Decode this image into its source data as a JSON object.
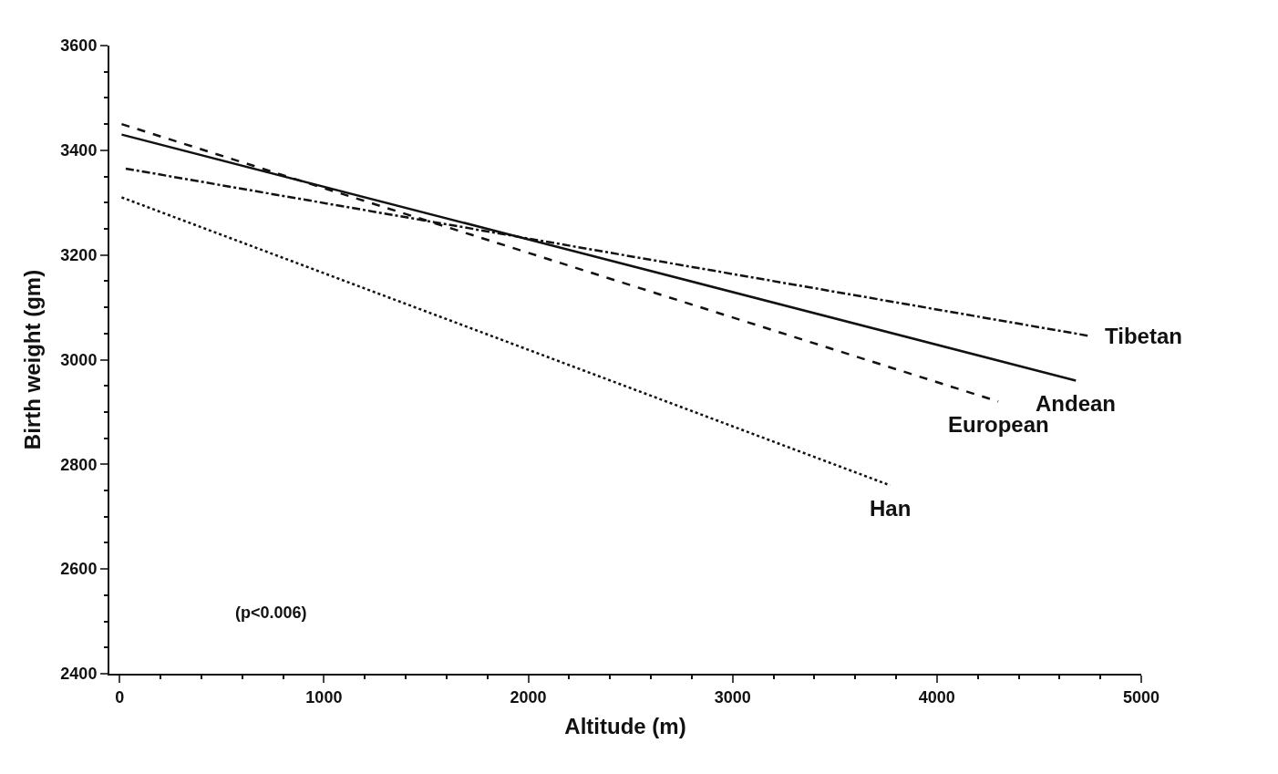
{
  "chart_data": {
    "type": "line",
    "xlabel": "Altitude (m)",
    "ylabel": "Birth weight (gm)",
    "xlim": [
      -50,
      5000
    ],
    "xticks": [
      0,
      1000,
      2000,
      3000,
      4000,
      5000
    ],
    "ylim": [
      2400,
      3600
    ],
    "yticks": [
      2400,
      2600,
      2800,
      3000,
      3200,
      3400,
      3600
    ],
    "grid": false,
    "legend": false,
    "marker": "none",
    "annotations": [
      "(p<0.006)"
    ],
    "series": [
      {
        "name": "Tibetan",
        "color": "#111111",
        "line_style": "dashdot",
        "x": [
          30,
          4750
        ],
        "values": [
          3365,
          3045
        ]
      },
      {
        "name": "Andean",
        "color": "#111111",
        "line_style": "solid",
        "x": [
          10,
          4680
        ],
        "values": [
          3430,
          2960
        ]
      },
      {
        "name": "European",
        "color": "#111111",
        "line_style": "dashed",
        "x": [
          10,
          4300
        ],
        "values": [
          3450,
          2920
        ]
      },
      {
        "name": "Han",
        "color": "#111111",
        "line_style": "dotted",
        "x": [
          10,
          3770
        ],
        "values": [
          3310,
          2760
        ]
      }
    ]
  }
}
